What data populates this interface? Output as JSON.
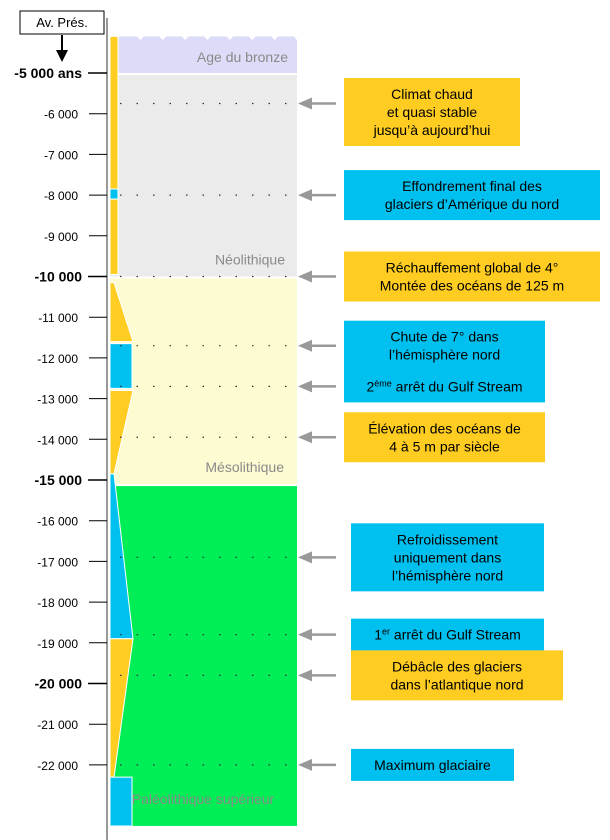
{
  "present_label": "Av. Prés.",
  "periods": [
    {
      "name": "Age du bronze",
      "from": 4100,
      "to": 5000,
      "color": "#dcdcf8"
    },
    {
      "name": "Néolithique",
      "from": 5000,
      "to": 10000,
      "color": "#ebebeb"
    },
    {
      "name": "Mésolithique",
      "from": 10000,
      "to": 15100,
      "color": "#fdfbd2"
    },
    {
      "name": "Paléolithique supérieur",
      "from": 15100,
      "to": 23500,
      "color": "#00ee55"
    }
  ],
  "ticks": [
    {
      "value": 5000,
      "label": "-5 000 ans",
      "major": true
    },
    {
      "value": 6000,
      "label": "-6 000",
      "major": false
    },
    {
      "value": 7000,
      "label": "-7 000",
      "major": false
    },
    {
      "value": 8000,
      "label": "-8 000",
      "major": false
    },
    {
      "value": 9000,
      "label": "-9 000",
      "major": false
    },
    {
      "value": 10000,
      "label": "-10 000",
      "major": true
    },
    {
      "value": 11000,
      "label": "-11 000",
      "major": false
    },
    {
      "value": 12000,
      "label": "-12 000",
      "major": false
    },
    {
      "value": 13000,
      "label": "-13 000",
      "major": false
    },
    {
      "value": 14000,
      "label": "-14 000",
      "major": false
    },
    {
      "value": 15000,
      "label": "-15 000",
      "major": true
    },
    {
      "value": 16000,
      "label": "-16 000",
      "major": false
    },
    {
      "value": 17000,
      "label": "-17 000",
      "major": false
    },
    {
      "value": 18000,
      "label": "-18 000",
      "major": false
    },
    {
      "value": 19000,
      "label": "-19 000",
      "major": false
    },
    {
      "value": 20000,
      "label": "-20 000",
      "major": true
    },
    {
      "value": 21000,
      "label": "-21 000",
      "major": false
    },
    {
      "value": 22000,
      "label": "-22 000",
      "major": false
    }
  ],
  "climate_bar": [
    {
      "from": 4100,
      "to": 7850,
      "shape": "rect",
      "color": "#ffcc22"
    },
    {
      "from": 7850,
      "to": 8100,
      "shape": "rect",
      "color": "#00c0f0"
    },
    {
      "from": 8100,
      "to": 9950,
      "shape": "rect",
      "color": "#ffcc22"
    },
    {
      "from": 10150,
      "to": 11600,
      "shape": "taper-down",
      "color": "#ffcc22"
    },
    {
      "from": 11650,
      "to": 12750,
      "shape": "rect",
      "color": "#00c0f0"
    },
    {
      "from": 12800,
      "to": 14850,
      "shape": "taper-up",
      "color": "#ffcc22"
    },
    {
      "from": 14850,
      "to": 18900,
      "shape": "taper-down",
      "color": "#00c0f0"
    },
    {
      "from": 18900,
      "to": 22300,
      "shape": "taper-up",
      "color": "#ffcc22"
    },
    {
      "from": 22300,
      "to": 23500,
      "shape": "rect",
      "color": "#00c0f0"
    }
  ],
  "events": [
    {
      "at": 5750,
      "lines": [
        "Climat chaud",
        "et quasi stable",
        "jusqu’à aujourd’hui"
      ],
      "color": "#ffcc22"
    },
    {
      "at": 8000,
      "lines": [
        "Effondrement final des",
        "glaciers d’Amérique du nord"
      ],
      "color": "#00c0f0"
    },
    {
      "at": 10000,
      "lines": [
        "Réchauffement global de  4°",
        "Montée des océans de 125 m"
      ],
      "color": "#ffcc22"
    },
    {
      "at": 11700,
      "lines": [
        "Chute de 7° dans",
        "l’hémisphère nord"
      ],
      "color": "#00c0f0"
    },
    {
      "at": 12700,
      "lines": [
        "2ème arrêt du Gulf Stream"
      ],
      "color": "#00c0f0"
    },
    {
      "at": 13950,
      "lines": [
        "Élévation des océans de",
        "4 à 5 m par siècle"
      ],
      "color": "#ffcc22"
    },
    {
      "at": 16900,
      "lines": [
        "Refroidissement",
        "uniquement dans",
        "l’hémisphère nord"
      ],
      "color": "#00c0f0"
    },
    {
      "at": 18800,
      "lines": [
        "1er arrêt du Gulf Stream"
      ],
      "color": "#00c0f0"
    },
    {
      "at": 19800,
      "lines": [
        "Débâcle des glaciers",
        "dans l’atlantique nord"
      ],
      "color": "#ffcc22"
    },
    {
      "at": 22000,
      "lines": [
        "Maximum glaciaire"
      ],
      "color": "#00c0f0"
    }
  ]
}
